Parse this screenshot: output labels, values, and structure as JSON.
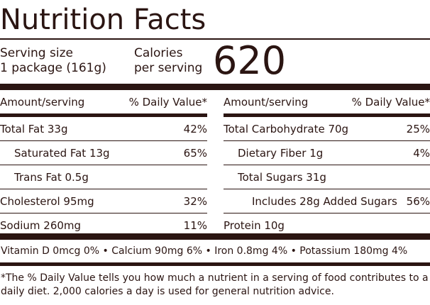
{
  "title": "Nutrition Facts",
  "serving": {
    "line1": "Serving size",
    "line2": "1 package (161g)"
  },
  "calories": {
    "line1": "Calories",
    "line2": "per serving",
    "value": "620"
  },
  "columns": {
    "amount_header": "Amount/serving",
    "dv_header": "% Daily Value*"
  },
  "left_rows": [
    {
      "name": "Total Fat 33g",
      "dv": "42%"
    },
    {
      "name": "Saturated Fat 13g",
      "dv": "65%"
    },
    {
      "name": "Trans Fat 0.5g",
      "dv": ""
    },
    {
      "name": "Cholesterol 95mg",
      "dv": "32%"
    },
    {
      "name": "Sodium 260mg",
      "dv": "11%"
    }
  ],
  "right_rows": [
    {
      "name": "Total Carbohydrate 70g",
      "dv": "25%"
    },
    {
      "name": "Dietary Fiber 1g",
      "dv": "4%"
    },
    {
      "name": "Total Sugars 31g",
      "dv": ""
    },
    {
      "name": "Includes 28g Added Sugars",
      "dv": "56%"
    },
    {
      "name": "Protein 10g",
      "dv": ""
    }
  ],
  "vitamins": "Vitamin D 0mcg 0% • Calcium 90mg 6% • Iron 0.8mg 4% • Potassium 180mg 4%",
  "footnote": "*The % Daily Value tells you how much a nutrient in a serving of food contributes to a daily diet. 2,000 calories a day is used for general nutrition advice."
}
